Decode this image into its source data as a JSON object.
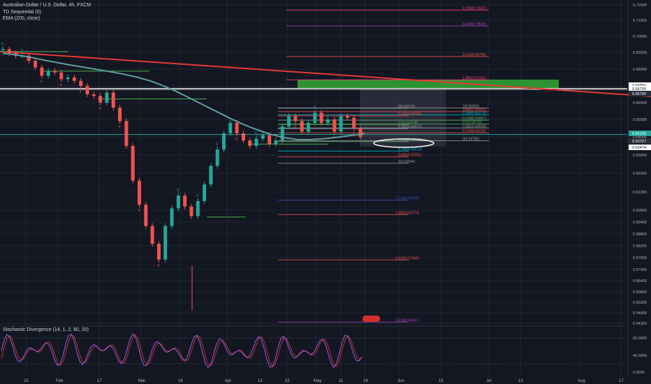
{
  "legend": {
    "symbol": "Australian Dollar / U.S. Dollar, 4h, FXCM",
    "indicator1": "TD Sequential (0)",
    "indicator2": "EMA (200, close)",
    "oscillator": "Stochastic Divergence (14, 1, 2, 80, 20)"
  },
  "colors": {
    "background": "#131722",
    "up_candle": "#26a69a",
    "down_candle": "#ef5350",
    "ema": "#5f9ea0",
    "trendline": "#e53935",
    "zone": "#2e9a32",
    "stoch": "#9c5be3",
    "stoch_signal": "#e53935"
  },
  "chart_data": {
    "type": "candlestick",
    "title": "Australian Dollar / U.S. Dollar, 4h, FXCM",
    "ylim": [
      0.543,
      0.723
    ],
    "y_ticks": [
      "0.72000",
      "0.71000",
      "0.70000",
      "0.69000",
      "0.68000",
      "0.67000",
      "0.66000",
      "0.65000",
      "0.64000",
      "0.63000",
      "0.62000",
      "0.61000",
      "0.60000",
      "0.59400",
      "0.58800",
      "0.58200",
      "0.57600",
      "0.57000",
      "0.56400",
      "0.55800",
      "0.55300",
      "0.54800",
      "0.54300"
    ],
    "x_ticks": [
      "22",
      "Feb",
      "17",
      "Mar",
      "16",
      "Apr",
      "13",
      "22",
      "May",
      "11",
      "18",
      "Jun",
      "15",
      "Jul",
      "13",
      "Aug",
      "17"
    ],
    "price_markers": [
      {
        "label": "0.66856",
        "value": 0.66856,
        "style": "white"
      },
      {
        "label": "0.66790",
        "value": 0.6679,
        "style": "white"
      },
      {
        "label": "0.66790",
        "value": 0.6679,
        "style": "dark"
      },
      {
        "label": "0.64136",
        "value": 0.64136,
        "style": "green"
      },
      {
        "label": "0.63727",
        "value": 0.63727,
        "style": "dark"
      },
      {
        "label": "0.63474",
        "value": 0.63474,
        "style": "white"
      }
    ],
    "fib_levels": [
      {
        "label": "4.236(0.71657)",
        "value": 0.71657,
        "color": "#ff4081"
      },
      {
        "label": "3.618(0.70645)",
        "value": 0.70645,
        "color": "#ab47bc"
      },
      {
        "label": "2.618(0.68749)",
        "value": 0.68749,
        "color": "#ef5350"
      },
      {
        "label": "1.886(0.67361)",
        "value": 0.67361,
        "color": "#ff4081"
      },
      {
        "label": "1(0.65681)",
        "value": 0.65681,
        "color": "#9e9e9e"
      },
      {
        "label": "0.886(0.65463)",
        "value": 0.65463,
        "color": "#ef5350"
      },
      {
        "label": "0.786(0.65273)",
        "value": 0.65273,
        "color": "#00bcd4"
      },
      {
        "label": "0.618(0.64957)",
        "value": 0.64957,
        "color": "#66bb6a"
      },
      {
        "label": "0.5(0.64733)",
        "value": 0.64733,
        "color": "#4caf50"
      },
      {
        "label": "0.382(0.64509)",
        "value": 0.64509,
        "color": "#9e9e9e"
      },
      {
        "label": "0.236(0.64232)",
        "value": 0.64232,
        "color": "#ef5350"
      },
      {
        "label": "0(0.63785)",
        "value": 0.63785,
        "color": "#9e9e9e"
      },
      {
        "label": "0(0.65673)",
        "value": 0.65673,
        "color": "#9e9e9e"
      },
      {
        "label": "0.236(0.65206)",
        "value": 0.65206,
        "color": "#ef5350"
      },
      {
        "label": "0.382(0.64477)",
        "value": 0.64477,
        "color": "#9e9e9e"
      },
      {
        "label": "0.5(0.64708)",
        "value": 0.64708,
        "color": "#4caf50"
      },
      {
        "label": "0.618(0.63739)",
        "value": 0.63739,
        "color": "#66bb6a"
      },
      {
        "label": "0.786(0.63214)",
        "value": 0.63214,
        "color": "#00bcd4"
      },
      {
        "label": "0.886(0.62901)",
        "value": 0.62901,
        "color": "#ef5350"
      },
      {
        "label": "1(0.62544)",
        "value": 0.62544,
        "color": "#9e9e9e"
      },
      {
        "label": "1.618(0.60549)",
        "value": 0.60549,
        "color": "#3f51b5"
      },
      {
        "label": "1.886(0.59774)",
        "value": 0.59774,
        "color": "#ef5350"
      },
      {
        "label": "2.618(0.57485)",
        "value": 0.57485,
        "color": "#ef5350"
      },
      {
        "label": "3.618(0.54357)",
        "value": 0.54357,
        "color": "#ab47bc"
      }
    ],
    "zone": {
      "top": 0.674,
      "bottom": 0.6685
    },
    "trendline": {
      "start": 0.6905,
      "end": 0.664
    },
    "ema_series": [
      0.6895,
      0.6885,
      0.6872,
      0.6855,
      0.684,
      0.6825,
      0.6812,
      0.6798,
      0.6785,
      0.677,
      0.6752,
      0.673,
      0.67,
      0.6665,
      0.6625,
      0.6585,
      0.6545,
      0.6505,
      0.647,
      0.644,
      0.6415,
      0.6395,
      0.6385,
      0.6385,
      0.639,
      0.6398,
      0.6408,
      0.6418
    ],
    "candle_series": [
      0.692,
      0.6895,
      0.688,
      0.688,
      0.685,
      0.681,
      0.676,
      0.679,
      0.678,
      0.674,
      0.675,
      0.673,
      0.67,
      0.665,
      0.664,
      0.66,
      0.666,
      0.657,
      0.649,
      0.635,
      0.616,
      0.603,
      0.592,
      0.583,
      0.575,
      0.592,
      0.601,
      0.608,
      0.602,
      0.597,
      0.605,
      0.614,
      0.624,
      0.633,
      0.642,
      0.648,
      0.642,
      0.638,
      0.635,
      0.639,
      0.641,
      0.636,
      0.638,
      0.646,
      0.652,
      0.649,
      0.643,
      0.648,
      0.654,
      0.648,
      0.65,
      0.643,
      0.652,
      0.651,
      0.645,
      0.64
    ],
    "oscillator_ticks": [
      "80.0000",
      "40.0000",
      "0.0000"
    ]
  }
}
